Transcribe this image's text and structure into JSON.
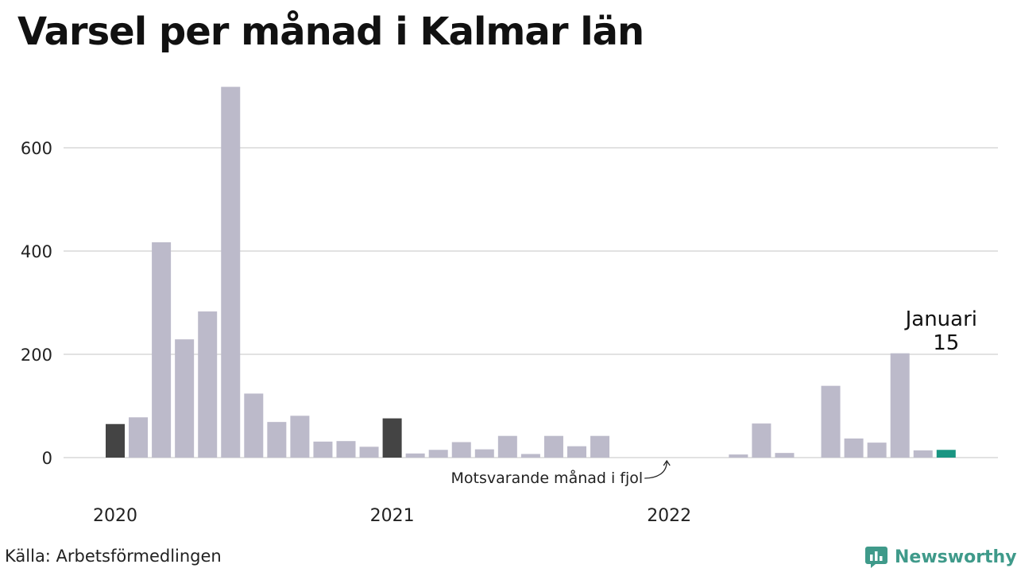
{
  "title": "Varsel per månad i Kalmar län",
  "source": "Källa: Arbetsförmedlingen",
  "brand": {
    "name": "Newsworthy",
    "icon": "newsworthy-logo-icon"
  },
  "colors": {
    "bar": "#bcbaca",
    "previous_year": "#444444",
    "current": "#1a9582",
    "grid": "#e2e2e2",
    "text": "#111111"
  },
  "chart_data": {
    "type": "bar",
    "title": "Varsel per månad i Kalmar län",
    "xlabel": "",
    "ylabel": "",
    "ylim": [
      0,
      720
    ],
    "yticks": [
      0,
      200,
      400,
      600
    ],
    "grid": true,
    "x_tick_labels": [
      {
        "label": "2020",
        "month": "2020-01"
      },
      {
        "label": "2021",
        "month": "2021-01"
      },
      {
        "label": "2022",
        "month": "2022-01"
      }
    ],
    "categories": [
      "2020-01",
      "2020-02",
      "2020-03",
      "2020-04",
      "2020-05",
      "2020-06",
      "2020-07",
      "2020-08",
      "2020-09",
      "2020-10",
      "2020-11",
      "2020-12",
      "2021-01",
      "2021-02",
      "2021-03",
      "2021-04",
      "2021-05",
      "2021-06",
      "2021-07",
      "2021-08",
      "2021-09",
      "2021-10",
      "2021-11",
      "2021-12",
      "2022-01",
      "2022-02",
      "2022-03",
      "2022-04",
      "2022-05",
      "2022-06",
      "2022-07",
      "2022-08",
      "2022-09",
      "2022-10",
      "2022-11",
      "2022-12",
      "2023-01"
    ],
    "values": [
      65,
      78,
      417,
      229,
      283,
      718,
      124,
      69,
      81,
      31,
      32,
      21,
      76,
      8,
      15,
      30,
      16,
      42,
      7,
      42,
      22,
      42,
      0,
      0,
      0,
      0,
      0,
      6,
      66,
      9,
      0,
      139,
      37,
      29,
      202,
      14,
      15
    ],
    "highlight": {
      "previous_year": [
        "2020-01",
        "2021-01"
      ],
      "current": "2023-01"
    },
    "annotations": [
      {
        "text": "Motsvarande månad i fjol",
        "month": "2022-01"
      },
      {
        "text": "Januari",
        "value_label": "15",
        "month": "2023-01"
      }
    ]
  }
}
